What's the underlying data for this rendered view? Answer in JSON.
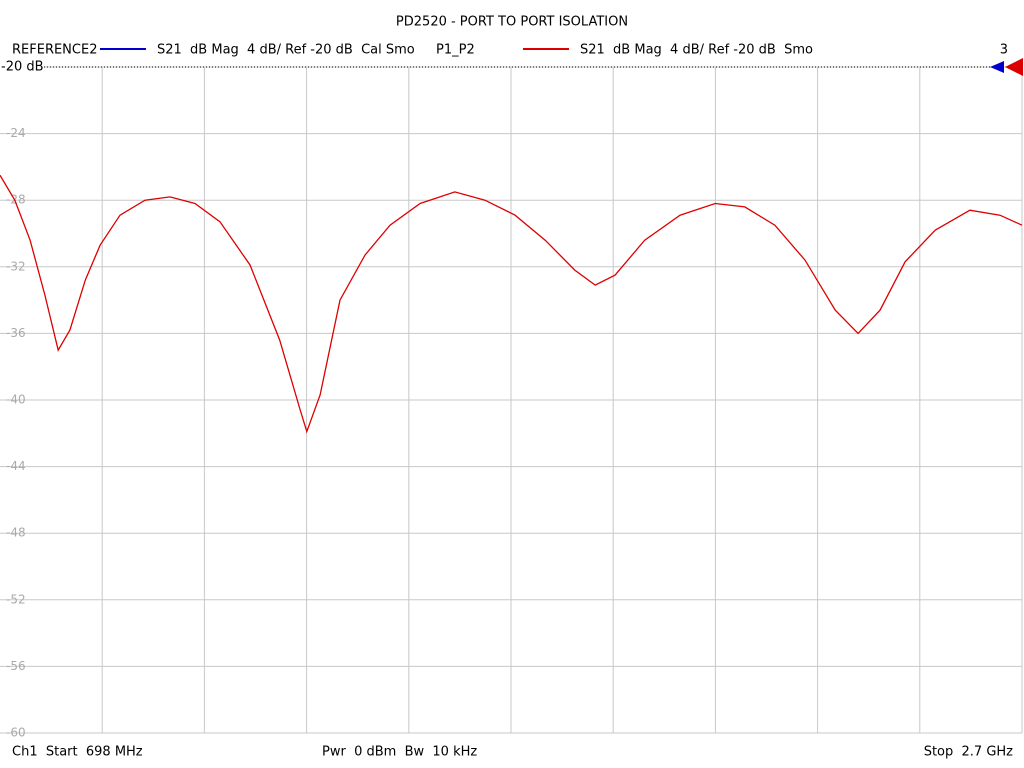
{
  "chart_data": {
    "type": "line",
    "title": "PD2520 - PORT TO PORT ISOLATION",
    "legend": [
      {
        "name": "REFERENCE2",
        "color": "#0000cc",
        "label": "S21  dB Mag  4 dB/ Ref -20 dB  Cal Smo"
      },
      {
        "name": "P1_P2",
        "color": "#dd0000",
        "label": "S21  dB Mag  4 dB/ Ref -20 dB  Smo"
      }
    ],
    "channel": "3",
    "reference_label": "-20 dB",
    "footer": {
      "start": "Ch1  Start  698 MHz",
      "middle": "Pwr  0 dBm  Bw  10 kHz",
      "stop": "Stop  2.7 GHz"
    },
    "x": [
      698,
      727,
      757,
      786,
      812,
      835,
      865,
      894,
      933,
      982,
      1031,
      1080,
      1129,
      1188,
      1246,
      1286,
      1299,
      1325,
      1364,
      1413,
      1462,
      1521,
      1589,
      1648,
      1707,
      1766,
      1824,
      1864,
      1903,
      1961,
      2030,
      2099,
      2157,
      2216,
      2275,
      2334,
      2379,
      2422,
      2471,
      2530,
      2598,
      2657,
      2700
    ],
    "series": [
      {
        "name": "P1_P2",
        "color": "#dd0000",
        "values": [
          -26.5,
          -28.0,
          -30.4,
          -33.7,
          -37.0,
          -35.8,
          -32.8,
          -30.7,
          -28.9,
          -28.0,
          -27.8,
          -28.2,
          -29.3,
          -31.9,
          -36.4,
          -40.6,
          -41.9,
          -39.7,
          -34.0,
          -31.3,
          -29.5,
          -28.2,
          -27.5,
          -28.0,
          -28.9,
          -30.4,
          -32.2,
          -33.1,
          -32.5,
          -30.4,
          -28.9,
          -28.2,
          -28.4,
          -29.5,
          -31.6,
          -34.6,
          -36.0,
          -34.6,
          -31.7,
          -29.8,
          -28.6,
          -28.9,
          -29.5
        ]
      }
    ],
    "xlim": [
      698,
      2700
    ],
    "ylim": [
      -60,
      -20
    ],
    "yticks": [
      -20,
      -24,
      -28,
      -32,
      -36,
      -40,
      -44,
      -48,
      -52,
      -56,
      -60
    ],
    "grid": true
  }
}
